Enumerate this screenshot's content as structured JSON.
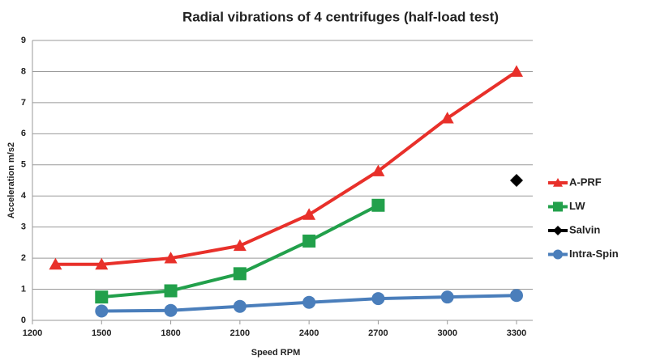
{
  "chart_data": {
    "type": "line",
    "title": "Radial vibrations of 4 centrifuges (half-load test)",
    "x_label": "Speed RPM",
    "y_label": "Acceleration m/s2",
    "xlim": [
      1200,
      3300
    ],
    "xticks": [
      1200,
      1500,
      1800,
      2100,
      2400,
      2700,
      3000,
      3300
    ],
    "ylim": [
      0,
      9
    ],
    "yticks": [
      0,
      1,
      2,
      3,
      4,
      5,
      6,
      7,
      8,
      9
    ],
    "grid": true,
    "legend": "right",
    "series": [
      {
        "name": "A-PRF",
        "color": "#e8302a",
        "marker": "triangle",
        "x": [
          1300,
          1500,
          1800,
          2100,
          2400,
          2700,
          3000,
          3300
        ],
        "values": [
          1.8,
          1.8,
          2.0,
          2.4,
          3.4,
          4.8,
          6.5,
          8.0
        ]
      },
      {
        "name": "LW",
        "color": "#22a04b",
        "marker": "square",
        "x": [
          1500,
          1800,
          2100,
          2400,
          2700
        ],
        "values": [
          0.75,
          0.95,
          1.5,
          2.55,
          3.7
        ]
      },
      {
        "name": "Salvin",
        "color": "#000000",
        "marker": "diamond",
        "x": [
          3300
        ],
        "values": [
          4.5
        ]
      },
      {
        "name": "Intra-Spin",
        "color": "#4a7ebb",
        "marker": "circle",
        "x": [
          1500,
          1800,
          2100,
          2400,
          2700,
          3000,
          3300
        ],
        "values": [
          0.3,
          0.32,
          0.45,
          0.58,
          0.7,
          0.75,
          0.8
        ]
      }
    ]
  }
}
